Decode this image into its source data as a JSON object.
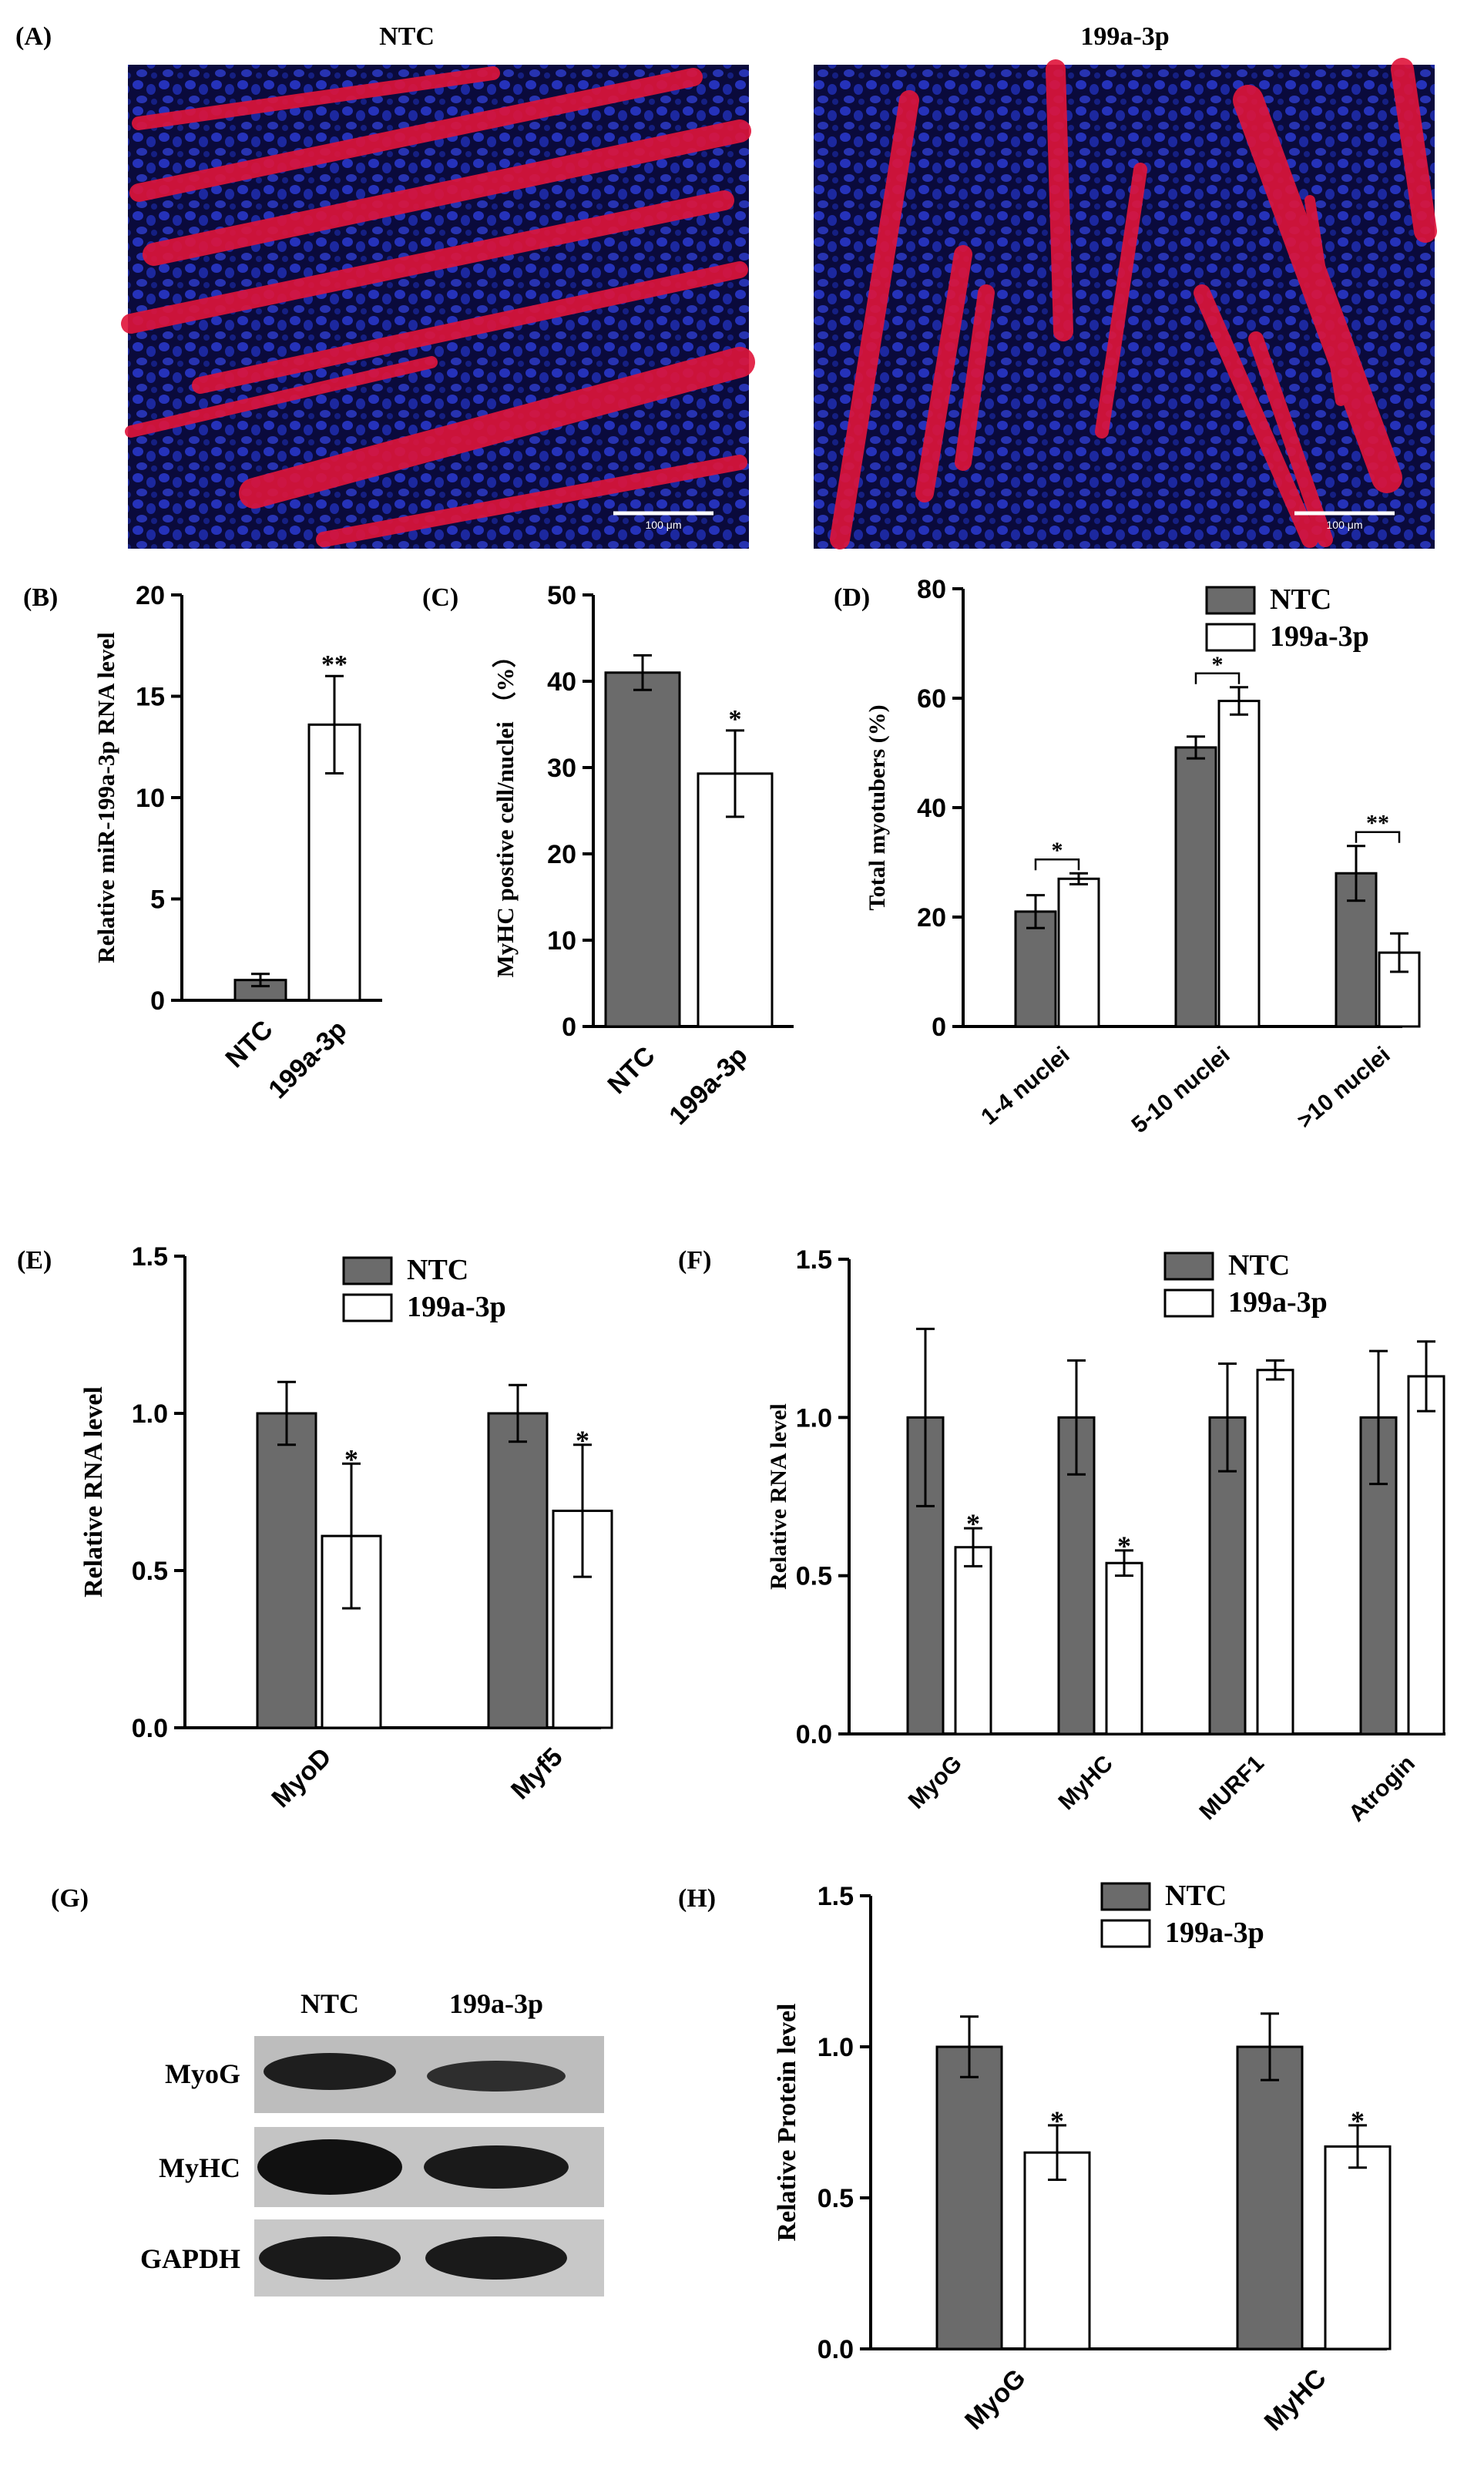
{
  "colors": {
    "ntc": "#6b6b6b",
    "treat": "#ffffff",
    "line": "#000000",
    "nuclei": "#1f2fb0",
    "myotube": "#e0143a",
    "blot": "#1e1e1e",
    "blot_bg": "#bdbdbd"
  },
  "panelA": {
    "letter": "(A)",
    "left": {
      "title": "NTC",
      "scalebar": "100 μm"
    },
    "right": {
      "title": "199a-3p",
      "scalebar": "100 μm"
    }
  },
  "panelG": {
    "letter": "(G)",
    "columns": [
      "NTC",
      "199a-3p"
    ],
    "rows": [
      "MyoG",
      "MyHC",
      "GAPDH"
    ]
  },
  "chart_data": [
    {
      "id": "B",
      "letter": "(B)",
      "type": "bar",
      "ylabel": "Relative miR-199a-3p RNA level",
      "ylim": [
        0,
        20
      ],
      "yticks": [
        0,
        5,
        10,
        15,
        20
      ],
      "ytick_labels": [
        "0",
        "5",
        "10",
        "15",
        "20"
      ],
      "categories": [
        "NTC",
        "199a-3p"
      ],
      "series": [
        {
          "name": "bars",
          "values": [
            1.0,
            13.6
          ],
          "errors": [
            0.3,
            2.4
          ],
          "fills": [
            "ntc",
            "treat"
          ]
        }
      ],
      "annotations": [
        {
          "cat": 1,
          "text": "**"
        }
      ]
    },
    {
      "id": "C",
      "letter": "(C)",
      "type": "bar",
      "ylabel": "MyHC postive cell/nuclei （%）",
      "ylim": [
        0,
        50
      ],
      "yticks": [
        0,
        10,
        20,
        30,
        40,
        50
      ],
      "ytick_labels": [
        "0",
        "10",
        "20",
        "30",
        "40",
        "50"
      ],
      "categories": [
        "NTC",
        "199a-3p"
      ],
      "series": [
        {
          "name": "bars",
          "values": [
            41.0,
            29.3
          ],
          "errors": [
            2.0,
            5.0
          ],
          "fills": [
            "ntc",
            "treat"
          ]
        }
      ],
      "annotations": [
        {
          "cat": 1,
          "text": "*"
        }
      ]
    },
    {
      "id": "D",
      "letter": "(D)",
      "type": "bar",
      "ylabel": "Total myotubers (%)",
      "ylim": [
        0,
        80
      ],
      "yticks": [
        0,
        20,
        40,
        60,
        80
      ],
      "ytick_labels": [
        "0",
        "20",
        "40",
        "60",
        "80"
      ],
      "categories": [
        "1-4 nuclei",
        "5-10 nuclei",
        ">10 nuclei"
      ],
      "legend": [
        "NTC",
        "199a-3p"
      ],
      "series": [
        {
          "name": "NTC",
          "values": [
            21.0,
            51.0,
            28.0
          ],
          "errors": [
            3.0,
            2.0,
            5.0
          ]
        },
        {
          "name": "199a-3p",
          "values": [
            27.0,
            59.5,
            13.5
          ],
          "errors": [
            1.0,
            2.5,
            3.5
          ]
        }
      ],
      "brackets": [
        {
          "cat": 0,
          "text": "*"
        },
        {
          "cat": 1,
          "text": "*"
        },
        {
          "cat": 2,
          "text": "**"
        }
      ]
    },
    {
      "id": "E",
      "letter": "(E)",
      "type": "bar",
      "ylabel": "Relative  RNA level",
      "ylim": [
        0,
        1.5
      ],
      "yticks": [
        0,
        0.5,
        1.0,
        1.5
      ],
      "ytick_labels": [
        "0.0",
        "0.5",
        "1.0",
        "1.5"
      ],
      "categories": [
        "MyoD",
        "Myf5"
      ],
      "legend": [
        "NTC",
        "199a-3p"
      ],
      "series": [
        {
          "name": "NTC",
          "values": [
            1.0,
            1.0
          ],
          "errors": [
            0.1,
            0.09
          ]
        },
        {
          "name": "199a-3p",
          "values": [
            0.61,
            0.69
          ],
          "errors": [
            0.23,
            0.21
          ]
        }
      ],
      "stars": [
        {
          "cat": 0,
          "text": "*"
        },
        {
          "cat": 1,
          "text": "*"
        }
      ]
    },
    {
      "id": "F",
      "letter": "(F)",
      "type": "bar",
      "ylabel": "Relative  RNA level",
      "ylim": [
        0,
        1.5
      ],
      "yticks": [
        0,
        0.5,
        1.0,
        1.5
      ],
      "ytick_labels": [
        "0.0",
        "0.5",
        "1.0",
        "1.5"
      ],
      "categories": [
        "MyoG",
        "MyHC",
        "MURF1",
        "Atrogin"
      ],
      "legend": [
        "NTC",
        "199a-3p"
      ],
      "series": [
        {
          "name": "NTC",
          "values": [
            1.0,
            1.0,
            1.0,
            1.0
          ],
          "errors": [
            0.28,
            0.18,
            0.17,
            0.21
          ]
        },
        {
          "name": "199a-3p",
          "values": [
            0.59,
            0.54,
            1.15,
            1.13
          ],
          "errors": [
            0.06,
            0.04,
            0.03,
            0.11
          ]
        }
      ],
      "stars": [
        {
          "cat": 0,
          "text": "*"
        },
        {
          "cat": 1,
          "text": "*"
        }
      ]
    },
    {
      "id": "H",
      "letter": "(H)",
      "type": "bar",
      "ylabel": "Relative  Protein  level",
      "ylim": [
        0,
        1.5
      ],
      "yticks": [
        0,
        0.5,
        1.0,
        1.5
      ],
      "ytick_labels": [
        "0.0",
        "0.5",
        "1.0",
        "1.5"
      ],
      "categories": [
        "MyoG",
        "MyHC"
      ],
      "legend": [
        "NTC",
        "199a-3p"
      ],
      "series": [
        {
          "name": "NTC",
          "values": [
            1.0,
            1.0
          ],
          "errors": [
            0.1,
            0.11
          ]
        },
        {
          "name": "199a-3p",
          "values": [
            0.65,
            0.67
          ],
          "errors": [
            0.09,
            0.07
          ]
        }
      ],
      "stars": [
        {
          "cat": 0,
          "text": "*"
        },
        {
          "cat": 1,
          "text": "*"
        }
      ]
    }
  ]
}
